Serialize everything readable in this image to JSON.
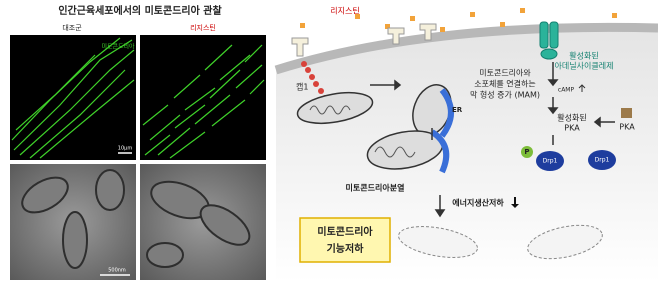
{
  "left": {
    "title": "인간근육세포에서의 미토콘드리아 관찰",
    "panels": [
      "대조군",
      "리지스틴"
    ],
    "fluor_label": "미토콘드리아",
    "scale_top": "10μm",
    "scale_bottom": "500nm"
  },
  "right": {
    "resistin": "리지스틴",
    "cap1": "캡1",
    "mam": [
      "미토콘드리아와",
      "소포체를 연결하는",
      "막 형성 증가 (MAM)"
    ],
    "er": "ER",
    "ac": [
      "활성화된",
      "아데닐사이클레제"
    ],
    "camp": "cAMP",
    "active_pka": [
      "활성화된",
      "PKA"
    ],
    "pka": "PKA",
    "p": "P",
    "drp1": [
      "Drp1",
      "Drp1"
    ],
    "fission": "미토콘드리아분열",
    "energy": "에너지생산저하",
    "result": [
      "미토콘드리아",
      "기능저하"
    ]
  }
}
